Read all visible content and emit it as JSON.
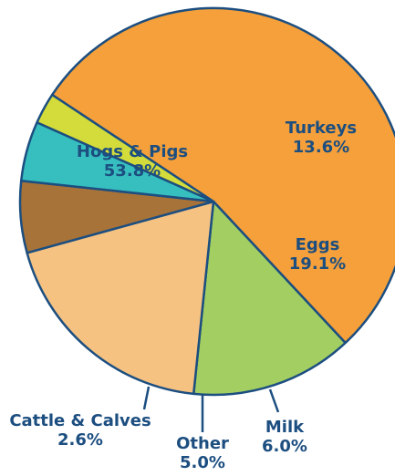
{
  "chart_data": {
    "type": "pie",
    "slices": [
      {
        "label": "Hogs & Pigs",
        "value": 53.8,
        "value_label": "53.8%",
        "color": "#f5a03a"
      },
      {
        "label": "Turkeys",
        "value": 13.6,
        "value_label": "13.6%",
        "color": "#a3cf62"
      },
      {
        "label": "Eggs",
        "value": 19.1,
        "value_label": "19.1%",
        "color": "#f5c282"
      },
      {
        "label": "Milk",
        "value": 6.0,
        "value_label": "6.0%",
        "color": "#a87338"
      },
      {
        "label": "Other",
        "value": 5.0,
        "value_label": "5.0%",
        "color": "#37bfbf"
      },
      {
        "label": "Cattle & Calves",
        "value": 2.6,
        "value_label": "2.6%",
        "color": "#d3dc3a"
      }
    ],
    "outline_color": "#1c4e80",
    "label_color": "#1c4e80"
  }
}
